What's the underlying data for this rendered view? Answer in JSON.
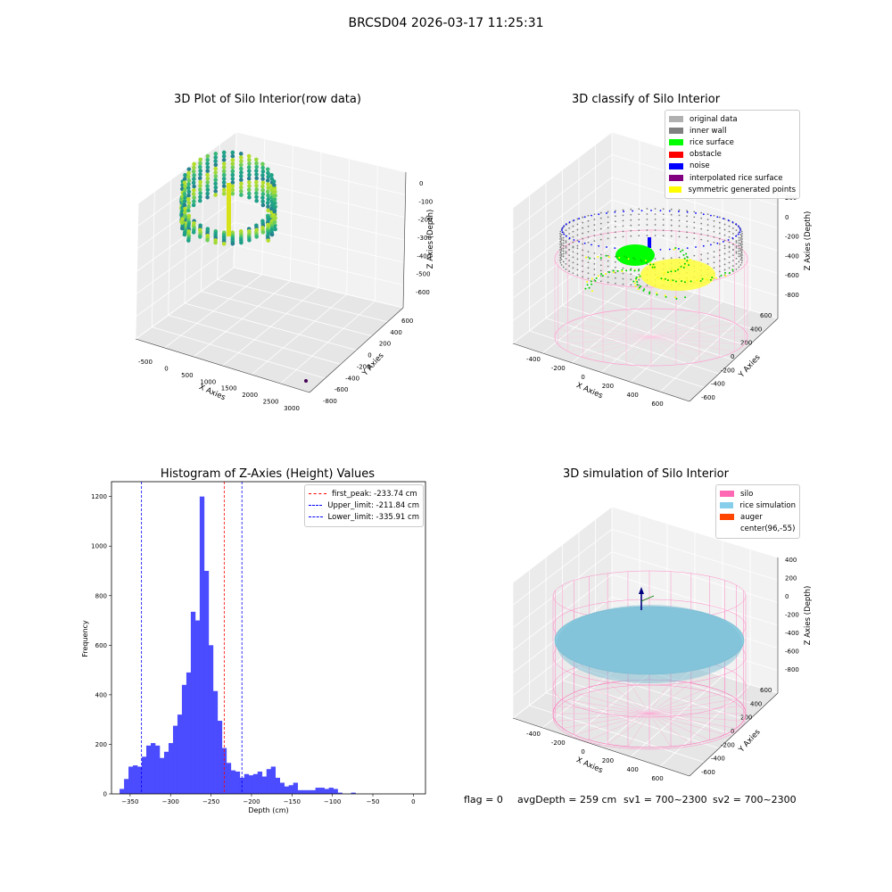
{
  "suptitle": "BRCSD04 2026-03-17 11:25:31",
  "chart_data": [
    {
      "type": "scatter",
      "title": "3D Plot of Silo Interior(row data)",
      "xlabel": "X Axies",
      "ylabel": "Y Axies",
      "zlabel": "Z Axies (Depth)",
      "x_ticks": [
        "-500",
        "0",
        "500",
        "1000",
        "1500",
        "2000",
        "2500",
        "3000"
      ],
      "y_ticks": [
        "600",
        "400",
        "200",
        "0",
        "-200",
        "-400",
        "-600",
        "-800"
      ],
      "z_ticks": [
        "0",
        "-100",
        "-200",
        "-300",
        "-400",
        "-500",
        "-600"
      ],
      "colormap": "viridis"
    },
    {
      "type": "scatter",
      "title": "3D classify of Silo Interior",
      "xlabel": "X Axies",
      "ylabel": "Y Axies",
      "zlabel": "Z Axies (Depth)",
      "x_ticks": [
        "-400",
        "-200",
        "0",
        "200",
        "400",
        "600"
      ],
      "y_ticks": [
        "600",
        "400",
        "200",
        "0",
        "-200",
        "-400",
        "-600"
      ],
      "z_ticks": [
        "200",
        "0",
        "-200",
        "-400",
        "-600",
        "-800"
      ],
      "legend": [
        {
          "label": "original data",
          "color": "#b0b0b0"
        },
        {
          "label": "inner wall",
          "color": "#808080"
        },
        {
          "label": "rice surface",
          "color": "#00ff00"
        },
        {
          "label": "obstacle",
          "color": "#ff0000"
        },
        {
          "label": "noise",
          "color": "#0000ff"
        },
        {
          "label": "interpolated rice surface",
          "color": "#800080"
        },
        {
          "label": "symmetric generated points",
          "color": "#ffff00"
        }
      ]
    },
    {
      "type": "bar",
      "title": "Histogram of Z-Axies (Height) Values",
      "xlabel": "Depth (cm)",
      "ylabel": "Frequency",
      "xlim": [
        -373,
        15
      ],
      "ylim": [
        0,
        1260
      ],
      "x_ticks": [
        -350,
        -300,
        -250,
        -200,
        -150,
        -100,
        -50,
        0
      ],
      "y_ticks": [
        0,
        200,
        400,
        600,
        800,
        1000,
        1200
      ],
      "bin_start": -363,
      "bin_width": 5.5,
      "values": [
        20,
        60,
        110,
        115,
        110,
        150,
        195,
        205,
        195,
        145,
        170,
        205,
        275,
        320,
        440,
        490,
        735,
        700,
        1200,
        900,
        600,
        415,
        295,
        185,
        125,
        95,
        90,
        65,
        80,
        75,
        80,
        90,
        70,
        100,
        110,
        65,
        45,
        30,
        35,
        45,
        15,
        15,
        15,
        15,
        25,
        25,
        20,
        25,
        20,
        5,
        0,
        0,
        5,
        0
      ],
      "lines": [
        {
          "label": "first_peak: -233.74 cm",
          "value": -233.74,
          "color": "#ff0000"
        },
        {
          "label": "Upper_limit: -211.84 cm",
          "value": -211.84,
          "color": "#0000ff"
        },
        {
          "label": "Lower_limit: -335.91 cm",
          "value": -335.91,
          "color": "#0000ff"
        }
      ],
      "color": "#4b4bff"
    },
    {
      "type": "scatter",
      "title": "3D simulation of Silo Interior",
      "xlabel": "X Axies",
      "ylabel": "Y Axies",
      "zlabel": "Z Axies (Depth)",
      "x_ticks": [
        "-400",
        "-200",
        "0",
        "200",
        "400",
        "600"
      ],
      "y_ticks": [
        "600",
        "400",
        "200",
        "0",
        "-200",
        "-400",
        "-600"
      ],
      "z_ticks": [
        "400",
        "200",
        "0",
        "-200",
        "-400",
        "-600",
        "-800"
      ],
      "legend": [
        {
          "label": "silo",
          "color": "#ff69b4"
        },
        {
          "label": "rice simulation",
          "color": "#87ceeb"
        },
        {
          "label": "auger",
          "color": "#ff4500"
        },
        {
          "label": "center(96,-55)",
          "color": "#ffffff"
        }
      ]
    }
  ],
  "footer": {
    "flag": "flag = 0",
    "avg_depth": "avgDepth = 259 cm",
    "sv1": "sv1 = 700~2300",
    "sv2": "sv2 = 700~2300"
  }
}
